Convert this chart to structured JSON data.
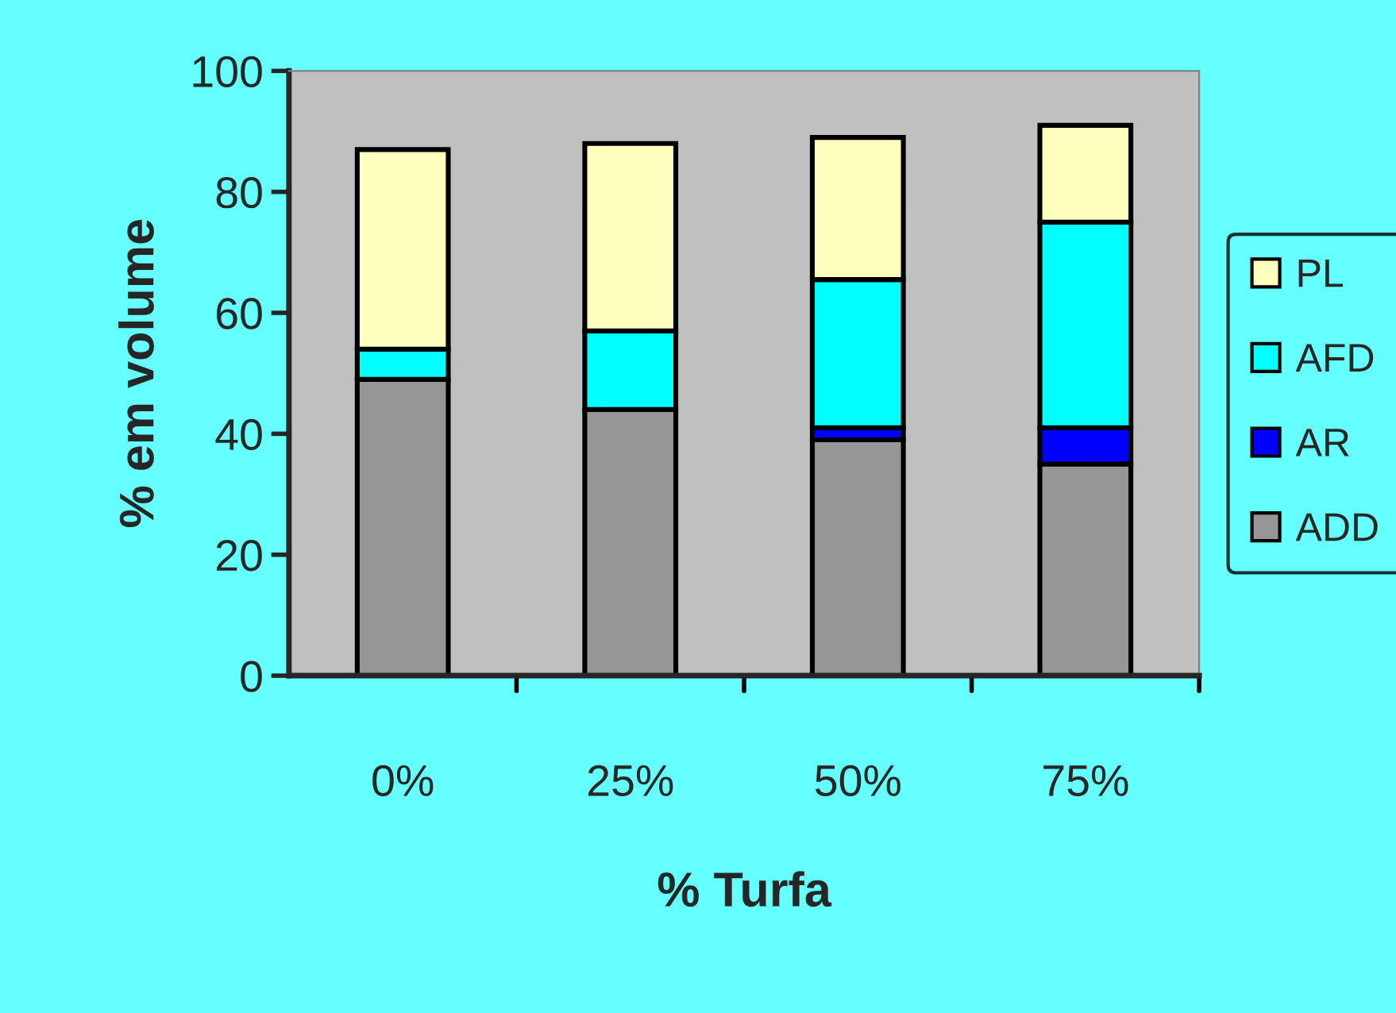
{
  "chart_data": {
    "type": "bar",
    "stacked": true,
    "xlabel": "% Turfa",
    "ylabel": "% em volume",
    "categories": [
      "0%",
      "25%",
      "50%",
      "75%"
    ],
    "series": [
      {
        "name": "ADD",
        "color": "#969696",
        "values": [
          49,
          44,
          39,
          35
        ]
      },
      {
        "name": "AR",
        "color": "#0000ff",
        "values": [
          0,
          0,
          2,
          6
        ]
      },
      {
        "name": "AFD",
        "color": "#00ffff",
        "values": [
          5,
          13,
          24.5,
          34
        ]
      },
      {
        "name": "PL",
        "color": "#ffffc0",
        "values": [
          33,
          31,
          23.5,
          16
        ]
      }
    ],
    "ylim": [
      0,
      100
    ],
    "yticks": [
      0,
      20,
      40,
      60,
      80,
      100
    ],
    "grid": false,
    "legend": "right"
  }
}
